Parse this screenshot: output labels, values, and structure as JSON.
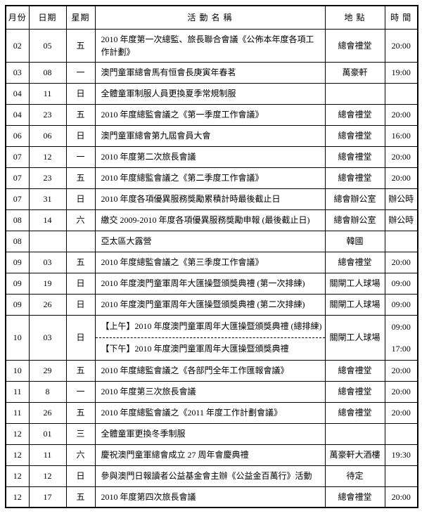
{
  "table": {
    "headers": {
      "month": "月份",
      "date": "日期",
      "weekday": "星期",
      "activity": "活 動 名 稱",
      "location": "地 點",
      "time": "時 間"
    },
    "rows": [
      {
        "month": "02",
        "date": "05",
        "weekday": "五",
        "activity": "2010 年度第一次總監、旅長聯合會議《公佈本年度各項工作計劃》",
        "location": "總會禮堂",
        "time": "20:00",
        "tall": true
      },
      {
        "month": "03",
        "date": "08",
        "weekday": "一",
        "activity": "澳門童軍總會馬有恒會長庚寅年春茗",
        "location": "萬豪軒",
        "time": "19:00"
      },
      {
        "month": "04",
        "date": "11",
        "weekday": "日",
        "activity": "全體童軍制服人員更換夏季常規制服",
        "location": "",
        "time": ""
      },
      {
        "month": "04",
        "date": "23",
        "weekday": "五",
        "activity": "2010 年度總監會議之《第一季度工作會議》",
        "location": "總會禮堂",
        "time": "20:00"
      },
      {
        "month": "06",
        "date": "06",
        "weekday": "日",
        "activity": "澳門童軍總會第九屆會員大會",
        "location": "總會禮堂",
        "time": "16:00"
      },
      {
        "month": "07",
        "date": "12",
        "weekday": "一",
        "activity": "2010 年度第二次旅長會議",
        "location": "總會禮堂",
        "time": "20:00"
      },
      {
        "month": "07",
        "date": "23",
        "weekday": "五",
        "activity": "2010 年度總監會議之《第二季度工作會議》",
        "location": "總會禮堂",
        "time": "20:00"
      },
      {
        "month": "07",
        "date": "31",
        "weekday": "日",
        "activity": "2010 年度各項優異服務獎勵累積計時最後截止日",
        "location": "總會辦公室",
        "time": "辦公時"
      },
      {
        "month": "08",
        "date": "14",
        "weekday": "六",
        "activity": "繳交 2009-2010 年度各項優異服務獎勵申報 (最後截止日)",
        "location": "總會辦公室",
        "time": "辦公時"
      },
      {
        "month": "08",
        "date": "",
        "weekday": "",
        "activity": "亞太區大露營",
        "location": "韓國",
        "time": ""
      },
      {
        "month": "09",
        "date": "03",
        "weekday": "五",
        "activity": "2010 年度總監會議之《第三季度工作會議》",
        "location": "總會禮堂",
        "time": "20:00"
      },
      {
        "month": "09",
        "date": "19",
        "weekday": "日",
        "activity": "2010 年度澳門童軍周年大匯操暨頒獎典禮 (第一次排練)",
        "location": "關閘工人球場",
        "time": "09:00"
      },
      {
        "month": "09",
        "date": "26",
        "weekday": "日",
        "activity": "2010 年度澳門童軍周年大匯操暨頒獎典禮 (第二次排練)",
        "location": "關閘工人球場",
        "time": "09:00"
      },
      {
        "month": "10",
        "date": "03",
        "weekday": "日",
        "split": true,
        "activity_top": "【上午】2010 年度澳門童軍周年大匯操暨頒獎典禮 (總排練)",
        "activity_bottom": "【下午】2010 年度澳門童軍周年大匯操暨頒獎典禮",
        "location": "關閘工人球場",
        "time_top": "09:00",
        "time_bottom": "17:00"
      },
      {
        "month": "10",
        "date": "29",
        "weekday": "五",
        "activity": "2010 年度總監會議之《各部門全年工作匯報會議》",
        "location": "總會禮堂",
        "time": "20:00"
      },
      {
        "month": "11",
        "date": "8",
        "weekday": "一",
        "activity": "2010 年度第三次旅長會議",
        "location": "總會禮堂",
        "time": "20:00"
      },
      {
        "month": "11",
        "date": "26",
        "weekday": "五",
        "activity": "2010 年度總監會議之《2011 年度工作計劃會議》",
        "location": "總會禮堂",
        "time": "20:00"
      },
      {
        "month": "12",
        "date": "01",
        "weekday": "三",
        "activity": "全體童軍更換冬季制服",
        "location": "",
        "time": ""
      },
      {
        "month": "12",
        "date": "11",
        "weekday": "六",
        "activity": "慶祝澳門童軍總會成立 27 周年會慶典禮",
        "location": "萬豪軒大酒樓",
        "time": "19:30"
      },
      {
        "month": "12",
        "date": "12",
        "weekday": "日",
        "activity": "參與澳門日報讀者公益基金會主辦《公益金百萬行》活動",
        "location": "待定",
        "time": ""
      },
      {
        "month": "12",
        "date": "17",
        "weekday": "五",
        "activity": "2010 年度第四次旅長會議",
        "location": "總會禮堂",
        "time": "20:00"
      }
    ]
  }
}
